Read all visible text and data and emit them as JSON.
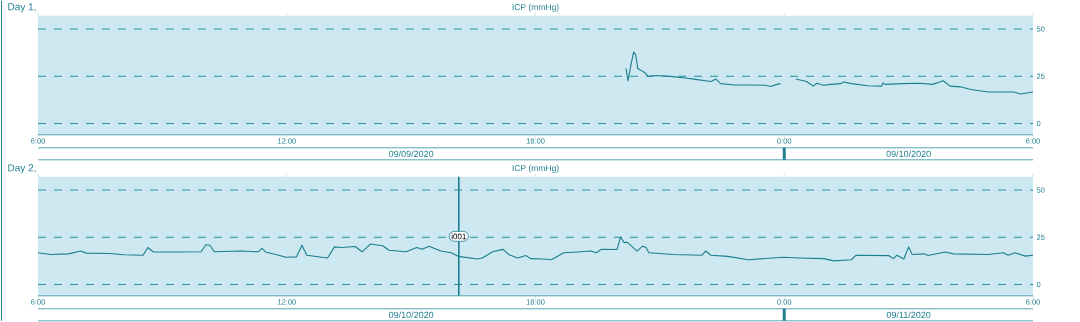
{
  "chart_data": [
    {
      "type": "line",
      "title": "Day 1,",
      "subtitle": "ICP (mmHg)",
      "xlim": [
        "2020-09-09T06:00",
        "2020-09-10T06:00"
      ],
      "ylim": [
        -6,
        57
      ],
      "xticks": [
        {
          "value": "2020-09-09T06:00",
          "label": "6:00"
        },
        {
          "value": "2020-09-09T12:00",
          "label": "12:00"
        },
        {
          "value": "2020-09-09T18:00",
          "label": "18:00"
        },
        {
          "value": "2020-09-10T00:00",
          "label": "0:00"
        },
        {
          "value": "2020-09-10T06:00",
          "label": "6:00"
        }
      ],
      "yticks": [
        0,
        25,
        50
      ],
      "grid": "y",
      "marker": "none",
      "line_style": "solid",
      "annotations": [
        "09/09/2020",
        "09/10/2020"
      ],
      "series": [
        {
          "color": "#1a7f8e",
          "x": [
            "2020-09-09T20:11",
            "2020-09-09T20:14",
            "2020-09-09T20:18",
            "2020-09-09T20:22",
            "2020-09-09T20:25",
            "2020-09-09T20:28",
            "2020-09-09T20:35",
            "2020-09-09T20:38",
            "2020-09-09T20:43",
            "2020-09-09T20:55",
            "2020-09-09T21:19",
            "2020-09-09T21:37",
            "2020-09-09T21:49",
            "2020-09-09T22:14",
            "2020-09-09T22:21",
            "2020-09-09T22:28",
            "2020-09-09T22:48",
            "2020-09-09T23:08",
            "2020-09-09T23:33",
            "2020-09-09T23:40",
            "2020-09-09T23:53",
            "2020-09-09T23:55",
            "2020-09-10T00:06",
            "2020-09-10T00:17",
            "2020-09-10T00:32",
            "2020-09-10T00:42",
            "2020-09-10T00:47",
            "2020-09-10T00:57",
            "2020-09-10T01:07",
            "2020-09-10T01:22",
            "2020-09-10T01:26",
            "2020-09-10T01:37",
            "2020-09-10T02:01",
            "2020-09-10T02:21",
            "2020-09-10T02:23",
            "2020-09-10T02:26",
            "2020-09-10T02:51",
            "2020-09-10T03:16",
            "2020-09-10T03:35",
            "2020-09-10T03:50",
            "2020-09-10T04:00",
            "2020-09-10T04:15",
            "2020-09-10T04:30",
            "2020-09-10T04:55",
            "2020-09-10T05:14",
            "2020-09-10T05:32",
            "2020-09-10T05:42",
            "2020-09-10T06:00"
          ],
          "values": [
            29.1,
            22.6,
            30.9,
            37.8,
            36.5,
            29.1,
            27.6,
            27.0,
            25.0,
            25.4,
            24.8,
            24.1,
            23.5,
            22.2,
            23.5,
            21.1,
            20.4,
            20.4,
            20.2,
            19.6,
            21.1,
            20.7,
            null,
            23.5,
            22.2,
            19.8,
            21.3,
            20.2,
            20.7,
            21.1,
            22.0,
            21.1,
            20.0,
            19.8,
            21.5,
            20.7,
            21.1,
            21.3,
            20.7,
            22.6,
            19.8,
            19.4,
            18.0,
            16.7,
            16.7,
            16.7,
            15.6,
            16.7
          ]
        }
      ]
    },
    {
      "type": "line",
      "title": "Day 2,",
      "subtitle": "ICP (mmHg)",
      "xlim": [
        "2020-09-10T06:00",
        "2020-09-11T06:00"
      ],
      "ylim": [
        -6,
        57
      ],
      "xticks": [
        {
          "value": "2020-09-10T06:00",
          "label": "6:00"
        },
        {
          "value": "2020-09-10T12:00",
          "label": "12:00"
        },
        {
          "value": "2020-09-10T18:00",
          "label": "18:00"
        },
        {
          "value": "2020-09-11T00:00",
          "label": "0:00"
        },
        {
          "value": "2020-09-11T06:00",
          "label": "6:00"
        }
      ],
      "yticks": [
        0,
        25,
        50
      ],
      "grid": "y",
      "marker": "none",
      "line_style": "solid",
      "annotations": [
        "09/10/2020",
        "09/11/2020"
      ],
      "ref_lines": [
        {
          "axis": "x",
          "value": "2020-09-10T16:09",
          "label": "i001",
          "color": "#1a7f8e"
        }
      ],
      "series": [
        {
          "color": "#1a7f8e",
          "x": [
            "2020-09-10T06:00",
            "2020-09-10T06:19",
            "2020-09-10T06:44",
            "2020-09-10T07:02",
            "2020-09-10T07:10",
            "2020-09-10T07:44",
            "2020-09-10T08:04",
            "2020-09-10T08:32",
            "2020-09-10T08:39",
            "2020-09-10T08:47",
            "2020-09-10T09:24",
            "2020-09-10T09:56",
            "2020-09-10T10:03",
            "2020-09-10T10:09",
            "2020-09-10T10:15",
            "2020-09-10T10:54",
            "2020-09-10T11:19",
            "2020-09-10T11:24",
            "2020-09-10T11:29",
            "2020-09-10T11:44",
            "2020-09-10T11:59",
            "2020-09-10T12:14",
            "2020-09-10T12:22",
            "2020-09-10T12:29",
            "2020-09-10T12:59",
            "2020-09-10T13:09",
            "2020-09-10T13:19",
            "2020-09-10T13:39",
            "2020-09-10T13:49",
            "2020-09-10T14:01",
            "2020-09-10T14:19",
            "2020-09-10T14:28",
            "2020-09-10T14:53",
            "2020-09-10T15:08",
            "2020-09-10T15:16",
            "2020-09-10T15:26",
            "2020-09-10T15:43",
            "2020-09-10T15:58",
            "2020-09-10T16:08",
            "2020-09-10T16:36",
            "2020-09-10T16:43",
            "2020-09-10T16:58",
            "2020-09-10T17:13",
            "2020-09-10T17:21",
            "2020-09-10T17:34",
            "2020-09-10T17:46",
            "2020-09-10T17:53",
            "2020-09-10T18:11",
            "2020-09-10T18:23",
            "2020-09-10T18:41",
            "2020-09-10T19:01",
            "2020-09-10T19:20",
            "2020-09-10T19:28",
            "2020-09-10T19:35",
            "2020-09-10T19:58",
            "2020-09-10T20:03",
            "2020-09-10T20:08",
            "2020-09-10T20:13",
            "2020-09-10T20:27",
            "2020-09-10T20:35",
            "2020-09-10T20:40",
            "2020-09-10T20:44",
            "2020-09-10T21:19",
            "2020-09-10T22:01",
            "2020-09-10T22:06",
            "2020-09-10T22:14",
            "2020-09-10T22:38",
            "2020-09-10T23:08",
            "2020-09-10T23:58",
            "2020-09-11T00:22",
            "2020-09-11T00:57",
            "2020-09-11T01:12",
            "2020-09-11T01:37",
            "2020-09-11T01:44",
            "2020-09-11T02:31",
            "2020-09-11T02:38",
            "2020-09-11T02:43",
            "2020-09-11T02:53",
            "2020-09-11T03:00",
            "2020-09-11T03:05",
            "2020-09-11T03:23",
            "2020-09-11T03:28",
            "2020-09-11T03:53",
            "2020-09-11T04:05",
            "2020-09-11T04:55",
            "2020-09-11T05:17",
            "2020-09-11T05:24",
            "2020-09-11T05:34",
            "2020-09-11T05:49",
            "2020-09-11T06:00"
          ],
          "values": [
            16.8,
            15.9,
            16.2,
            17.7,
            16.6,
            16.4,
            15.7,
            15.5,
            19.6,
            17.2,
            17.2,
            17.3,
            21.0,
            20.8,
            17.3,
            17.7,
            17.3,
            19.2,
            17.2,
            15.9,
            14.4,
            14.6,
            20.8,
            15.5,
            14.0,
            19.9,
            19.6,
            20.1,
            17.3,
            21.4,
            20.5,
            18.1,
            17.3,
            19.6,
            18.6,
            20.3,
            17.7,
            16.8,
            14.9,
            13.5,
            14.0,
            17.3,
            18.6,
            15.9,
            14.0,
            15.3,
            13.7,
            13.5,
            13.1,
            16.8,
            17.2,
            17.7,
            16.8,
            18.6,
            18.5,
            25.1,
            22.3,
            22.3,
            17.7,
            20.3,
            19.6,
            16.8,
            15.9,
            15.5,
            17.7,
            15.5,
            14.9,
            13.1,
            14.4,
            14.0,
            13.7,
            12.5,
            13.1,
            15.5,
            15.3,
            13.7,
            15.5,
            13.5,
            19.9,
            15.9,
            16.2,
            15.3,
            17.2,
            16.2,
            15.9,
            16.8,
            15.5,
            16.8,
            15.0,
            15.5
          ]
        }
      ]
    }
  ]
}
